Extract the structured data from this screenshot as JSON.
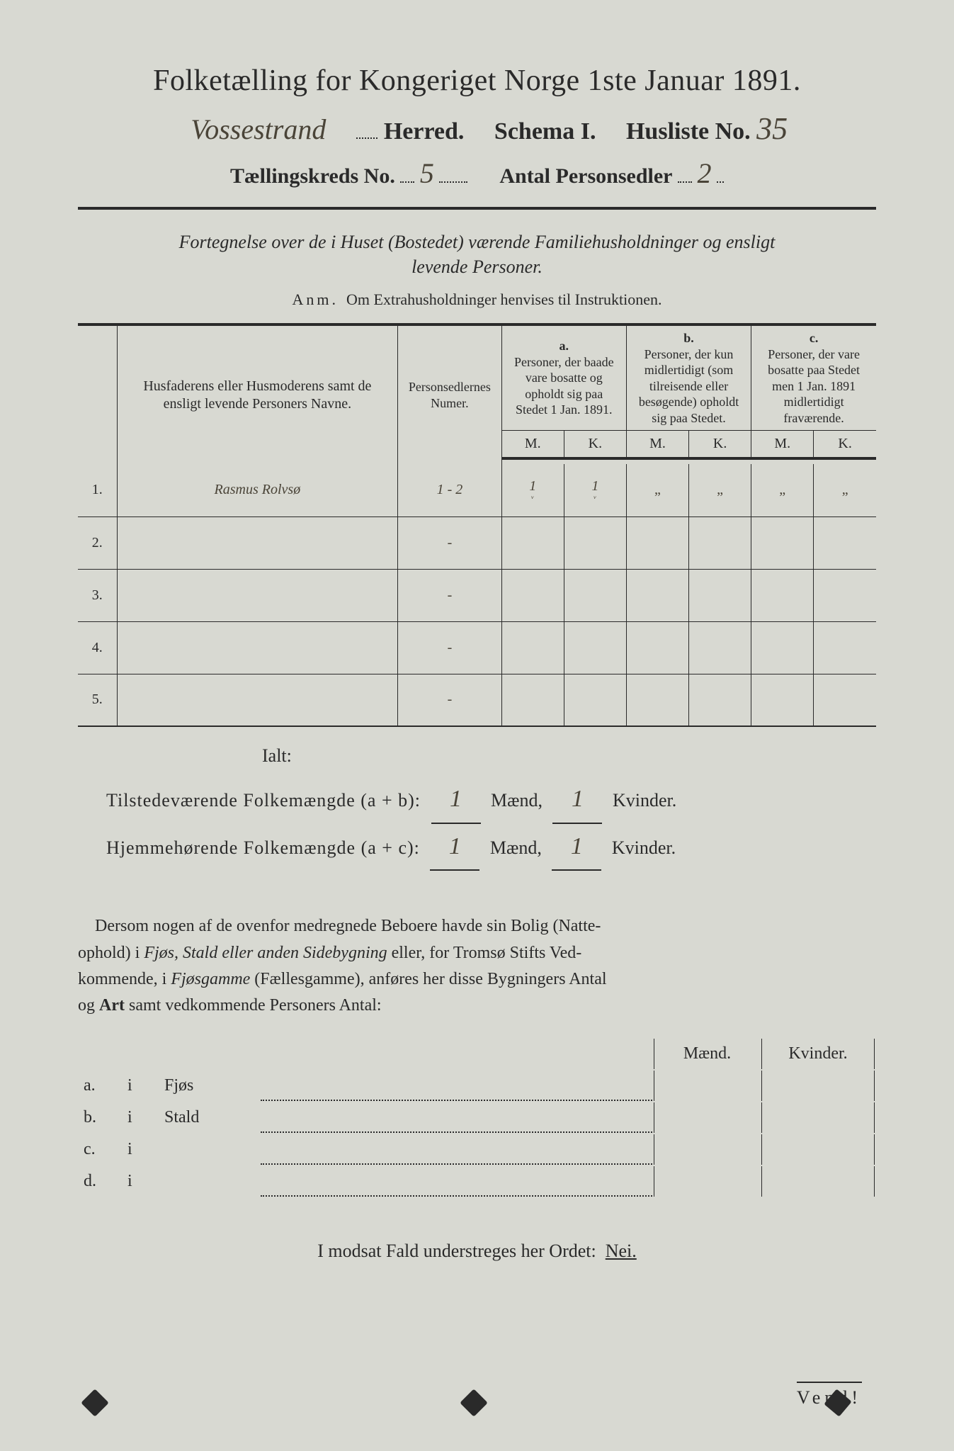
{
  "colors": {
    "paper": "#d8d9d2",
    "ink": "#2a2a2a",
    "hand": "#4a4438"
  },
  "title": "Folketælling for Kongeriget Norge 1ste Januar 1891.",
  "header": {
    "herred_hand": "Vossestrand",
    "herred_label": "Herred.",
    "schema_label": "Schema I.",
    "husliste_label": "Husliste No.",
    "husliste_no_hand": "35",
    "kreds_label": "Tællingskreds No.",
    "kreds_no_hand": "5",
    "antal_label": "Antal Personsedler",
    "antal_hand": "2"
  },
  "subtitle_line1": "Fortegnelse over de i Huset (Bostedet) værende Familiehusholdninger og ensligt",
  "subtitle_line2": "levende Personer.",
  "anm_lead": "Anm.",
  "anm_text": "Om Extrahusholdninger henvises til Instruktionen.",
  "table": {
    "col_names_label": "Husfaderens eller Husmoderens samt de ensligt levende Personers Navne.",
    "col_numer_label": "Personsedlernes Numer.",
    "group_a": "a.",
    "group_a_text": "Personer, der baade vare bosatte og opholdt sig paa Stedet 1 Jan. 1891.",
    "group_b": "b.",
    "group_b_text": "Personer, der kun midlertidigt (som tilreisende eller besøgende) opholdt sig paa Stedet.",
    "group_c": "c.",
    "group_c_text": "Personer, der vare bosatte paa Stedet men 1 Jan. 1891 midlertidigt fraværende.",
    "M": "M.",
    "K": "K.",
    "rows": [
      {
        "n": "1.",
        "name": "Rasmus Rolvsø",
        "numer": "1 - 2",
        "aM": "1",
        "aK": "1",
        "bM": "„",
        "bK": "„",
        "cM": "„",
        "cK": "„"
      },
      {
        "n": "2.",
        "name": "",
        "numer": "-",
        "aM": "",
        "aK": "",
        "bM": "",
        "bK": "",
        "cM": "",
        "cK": ""
      },
      {
        "n": "3.",
        "name": "",
        "numer": "-",
        "aM": "",
        "aK": "",
        "bM": "",
        "bK": "",
        "cM": "",
        "cK": ""
      },
      {
        "n": "4.",
        "name": "",
        "numer": "-",
        "aM": "",
        "aK": "",
        "bM": "",
        "bK": "",
        "cM": "",
        "cK": ""
      },
      {
        "n": "5.",
        "name": "",
        "numer": "-",
        "aM": "",
        "aK": "",
        "bM": "",
        "bK": "",
        "cM": "",
        "cK": ""
      }
    ]
  },
  "ialt": "Ialt:",
  "sum1_label": "Tilstedeværende Folkemængde (a + b):",
  "sum2_label": "Hjemmehørende Folkemængde (a + c):",
  "maend": "Mænd,",
  "kvinder": "Kvinder.",
  "sum1_m": "1",
  "sum1_k": "1",
  "sum2_m": "1",
  "sum2_k": "1",
  "para_text": "Dersom nogen af de ovenfor medregnede Beboere havde sin Bolig (Natteophold) i Fjøs, Stald eller anden Sidebygning eller, for Tromsø Stifts Vedkommende, i Fjøsgamme (Fællesgamme), anføres her disse Bygningers Antal og Art samt vedkommende Personers Antal:",
  "side": {
    "maend": "Mænd.",
    "kvinder": "Kvinder.",
    "rows": [
      {
        "lab": "a.",
        "i": "i",
        "kind": "Fjøs"
      },
      {
        "lab": "b.",
        "i": "i",
        "kind": "Stald"
      },
      {
        "lab": "c.",
        "i": "i",
        "kind": ""
      },
      {
        "lab": "d.",
        "i": "i",
        "kind": ""
      }
    ]
  },
  "modsat": "I modsat Fald understreges her Ordet:",
  "nei": "Nei.",
  "vend": "Vend!"
}
